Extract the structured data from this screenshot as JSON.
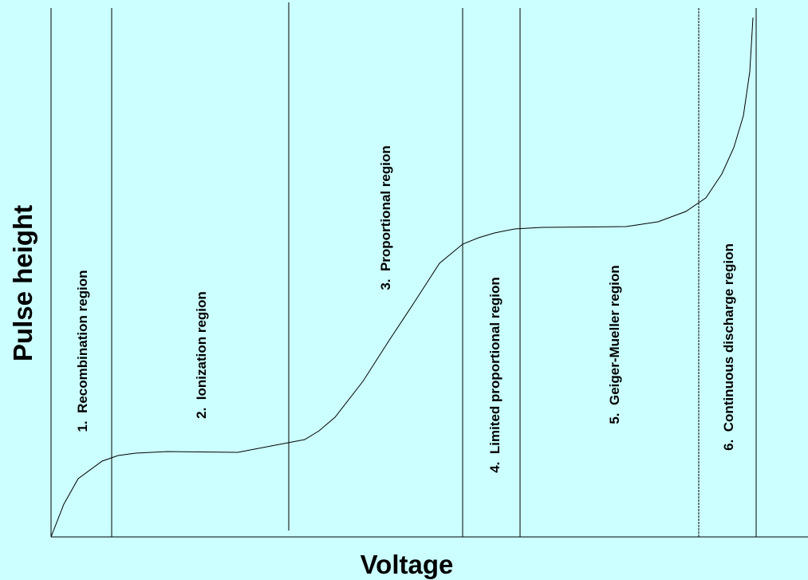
{
  "axes": {
    "x_label": "Voltage",
    "y_label": "Pulse height"
  },
  "regions": [
    {
      "label": "1.  Recombination region"
    },
    {
      "label": "2.  Ionization region"
    },
    {
      "label": "3.  Proportional region"
    },
    {
      "label": "4.  Limited proportional region"
    },
    {
      "label": "5.  Geiger-Mueller region"
    },
    {
      "label": "6.  Continuous discharge region"
    }
  ]
}
